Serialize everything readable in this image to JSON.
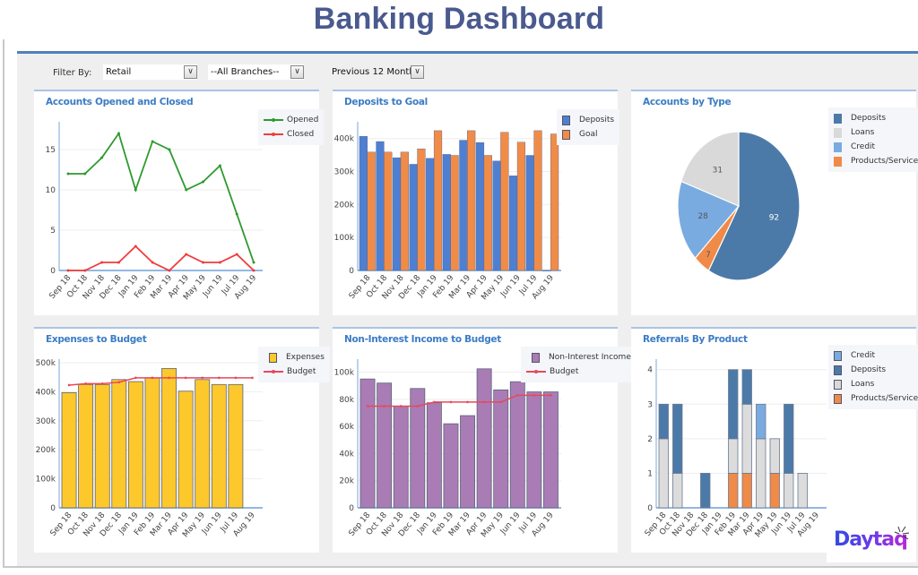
{
  "header": {
    "title": "Banking Dashboard"
  },
  "filters": {
    "label": "Filter By:",
    "segment": "Retail",
    "branch": "--All Branches--",
    "period": "Previous 12 Months",
    "dropdown_icon": "chevron-down-icon"
  },
  "colors": {
    "title": "#4a5a8e",
    "panel_title": "#3b7cc4",
    "accent_line": "#4f81bd",
    "opened": "#2e9a2e",
    "closed": "#f03c3c",
    "deposits_bar": "#4f7fd1",
    "goal_bar": "#f08c48",
    "expenses_bar": "#fcc82c",
    "budget_line": "#e8485a",
    "nii_bar": "#a97cb6",
    "pie_deposits": "#4c7aa8",
    "pie_loans": "#d9d9d9",
    "pie_credit": "#7aabe0",
    "pie_products": "#f08a48"
  },
  "months": [
    "Sep 18",
    "Oct 18",
    "Nov 18",
    "Dec 18",
    "Jan 19",
    "Feb 19",
    "Mar 19",
    "Apr 19",
    "May 19",
    "Jun 19",
    "Jul 19",
    "Aug 19"
  ],
  "chart_data": [
    {
      "id": "accounts-opened-closed",
      "type": "line",
      "title": "Accounts Opened and Closed",
      "categories": [
        "Sep 18",
        "Oct 18",
        "Nov 18",
        "Dec 18",
        "Jan 19",
        "Feb 19",
        "Mar 19",
        "Apr 19",
        "May 19",
        "Jun 19",
        "Jul 19",
        "Aug 19"
      ],
      "series": [
        {
          "name": "Opened",
          "values": [
            12,
            12,
            14,
            17,
            10,
            16,
            15,
            10,
            11,
            13,
            7,
            1
          ]
        },
        {
          "name": "Closed",
          "values": [
            0,
            0,
            1,
            1,
            3,
            1,
            0,
            2,
            1,
            1,
            2,
            0
          ]
        }
      ],
      "yticks": [
        0,
        5,
        10,
        15
      ],
      "ylim": [
        0,
        18
      ],
      "legend": "top-right",
      "grid": true
    },
    {
      "id": "deposits-to-goal",
      "type": "bar",
      "title": "Deposits to Goal",
      "categories": [
        "Sep 18",
        "Oct 18",
        "Nov 18",
        "Dec 18",
        "Jan 19",
        "Feb 19",
        "Mar 19",
        "Apr 19",
        "May 19",
        "Jun 19",
        "Jul 19",
        "Aug 19"
      ],
      "series": [
        {
          "name": "Deposits",
          "values": [
            407000,
            391000,
            342000,
            322000,
            340000,
            352000,
            395000,
            388000,
            332000,
            287000,
            349000,
            0
          ]
        },
        {
          "name": "Goal",
          "values": [
            359000,
            359000,
            359000,
            369000,
            424000,
            349000,
            424000,
            349000,
            419000,
            389000,
            424000,
            414000
          ]
        }
      ],
      "yticks": [
        0,
        100000,
        200000,
        300000,
        400000
      ],
      "ytick_labels": [
        "0",
        "100k",
        "200k",
        "300k",
        "400k"
      ],
      "ylim": [
        0,
        440000
      ],
      "legend": "top-right",
      "grid": true
    },
    {
      "id": "accounts-by-type",
      "type": "pie",
      "title": "Accounts by Type",
      "labels": [
        "Deposits",
        "Loans",
        "Credit",
        "Products/Services"
      ],
      "values": [
        92,
        31,
        28,
        7
      ],
      "legend": "top-right"
    },
    {
      "id": "expenses-to-budget",
      "type": "bar",
      "title": "Expenses to Budget",
      "categories": [
        "Sep 18",
        "Oct 18",
        "Nov 18",
        "Dec 18",
        "Jan 19",
        "Feb 19",
        "Mar 19",
        "Apr 19",
        "May 19",
        "Jun 19",
        "Jul 19",
        "Aug 19"
      ],
      "series": [
        {
          "name": "Expenses",
          "type": "bar",
          "values": [
            397000,
            425000,
            425000,
            442000,
            435000,
            448000,
            480000,
            402000,
            442000,
            425000,
            425000,
            null
          ]
        },
        {
          "name": "Budget",
          "type": "line",
          "values": [
            423000,
            428000,
            428000,
            433000,
            448000,
            448000,
            448000,
            448000,
            448000,
            448000,
            448000,
            448000
          ]
        }
      ],
      "yticks": [
        0,
        100000,
        200000,
        300000,
        400000,
        500000
      ],
      "ytick_labels": [
        "0",
        "100k",
        "200k",
        "300k",
        "400k",
        "500k"
      ],
      "ylim": [
        0,
        500000
      ],
      "legend": "top-right",
      "grid": true
    },
    {
      "id": "non-interest-income-to-budget",
      "type": "bar",
      "title": "Non-Interest Income to Budget",
      "categories": [
        "Sep 18",
        "Oct 18",
        "Nov 18",
        "Dec 18",
        "Jan 19",
        "Feb 19",
        "Mar 19",
        "Apr 19",
        "May 19",
        "Jun 19",
        "Jul 19",
        "Aug 19"
      ],
      "series": [
        {
          "name": "Non-Interest Income",
          "type": "bar",
          "values": [
            95000,
            92000,
            75000,
            88000,
            77500,
            62000,
            68000,
            102500,
            87000,
            93000,
            85500,
            85500
          ]
        },
        {
          "name": "Budget",
          "type": "line",
          "values": [
            75000,
            75000,
            75000,
            75000,
            78000,
            78000,
            78000,
            78000,
            78000,
            83000,
            83000,
            83000
          ]
        }
      ],
      "yticks": [
        0,
        20000,
        40000,
        60000,
        80000,
        100000
      ],
      "ytick_labels": [
        "0",
        "20k",
        "40k",
        "60k",
        "80k",
        "100k"
      ],
      "ylim": [
        0,
        107000
      ],
      "legend": "top-right",
      "grid": true
    },
    {
      "id": "referrals-by-product",
      "type": "bar",
      "stacked": true,
      "title": "Referrals By Product",
      "categories": [
        "Sep 18",
        "Oct 18",
        "Nov 18",
        "Dec 18",
        "Jan 19",
        "Feb 19",
        "Mar 19",
        "Apr 19",
        "May 19",
        "Jun 19",
        "Jul 19",
        "Aug 19"
      ],
      "series": [
        {
          "name": "Products/Services",
          "values": [
            0,
            0,
            0,
            0,
            0,
            1,
            1,
            0,
            1,
            0,
            0,
            0
          ]
        },
        {
          "name": "Loans",
          "values": [
            2,
            1,
            0,
            0,
            0,
            1,
            2,
            2,
            1,
            1,
            1,
            0
          ]
        },
        {
          "name": "Credit",
          "values": [
            0,
            0,
            0,
            0,
            0,
            0,
            0,
            1,
            0,
            0,
            0,
            0
          ]
        },
        {
          "name": "Deposits",
          "values": [
            1,
            2,
            0,
            1,
            0,
            2,
            1,
            0,
            0,
            2,
            0,
            0
          ]
        }
      ],
      "legend_order": [
        "Credit",
        "Deposits",
        "Loans",
        "Products/Services"
      ],
      "yticks": [
        0,
        1,
        2,
        3,
        4
      ],
      "ylim": [
        0,
        4.2
      ],
      "legend": "top-right",
      "grid": true
    }
  ],
  "branding": {
    "logo_text": "Daytaq"
  }
}
